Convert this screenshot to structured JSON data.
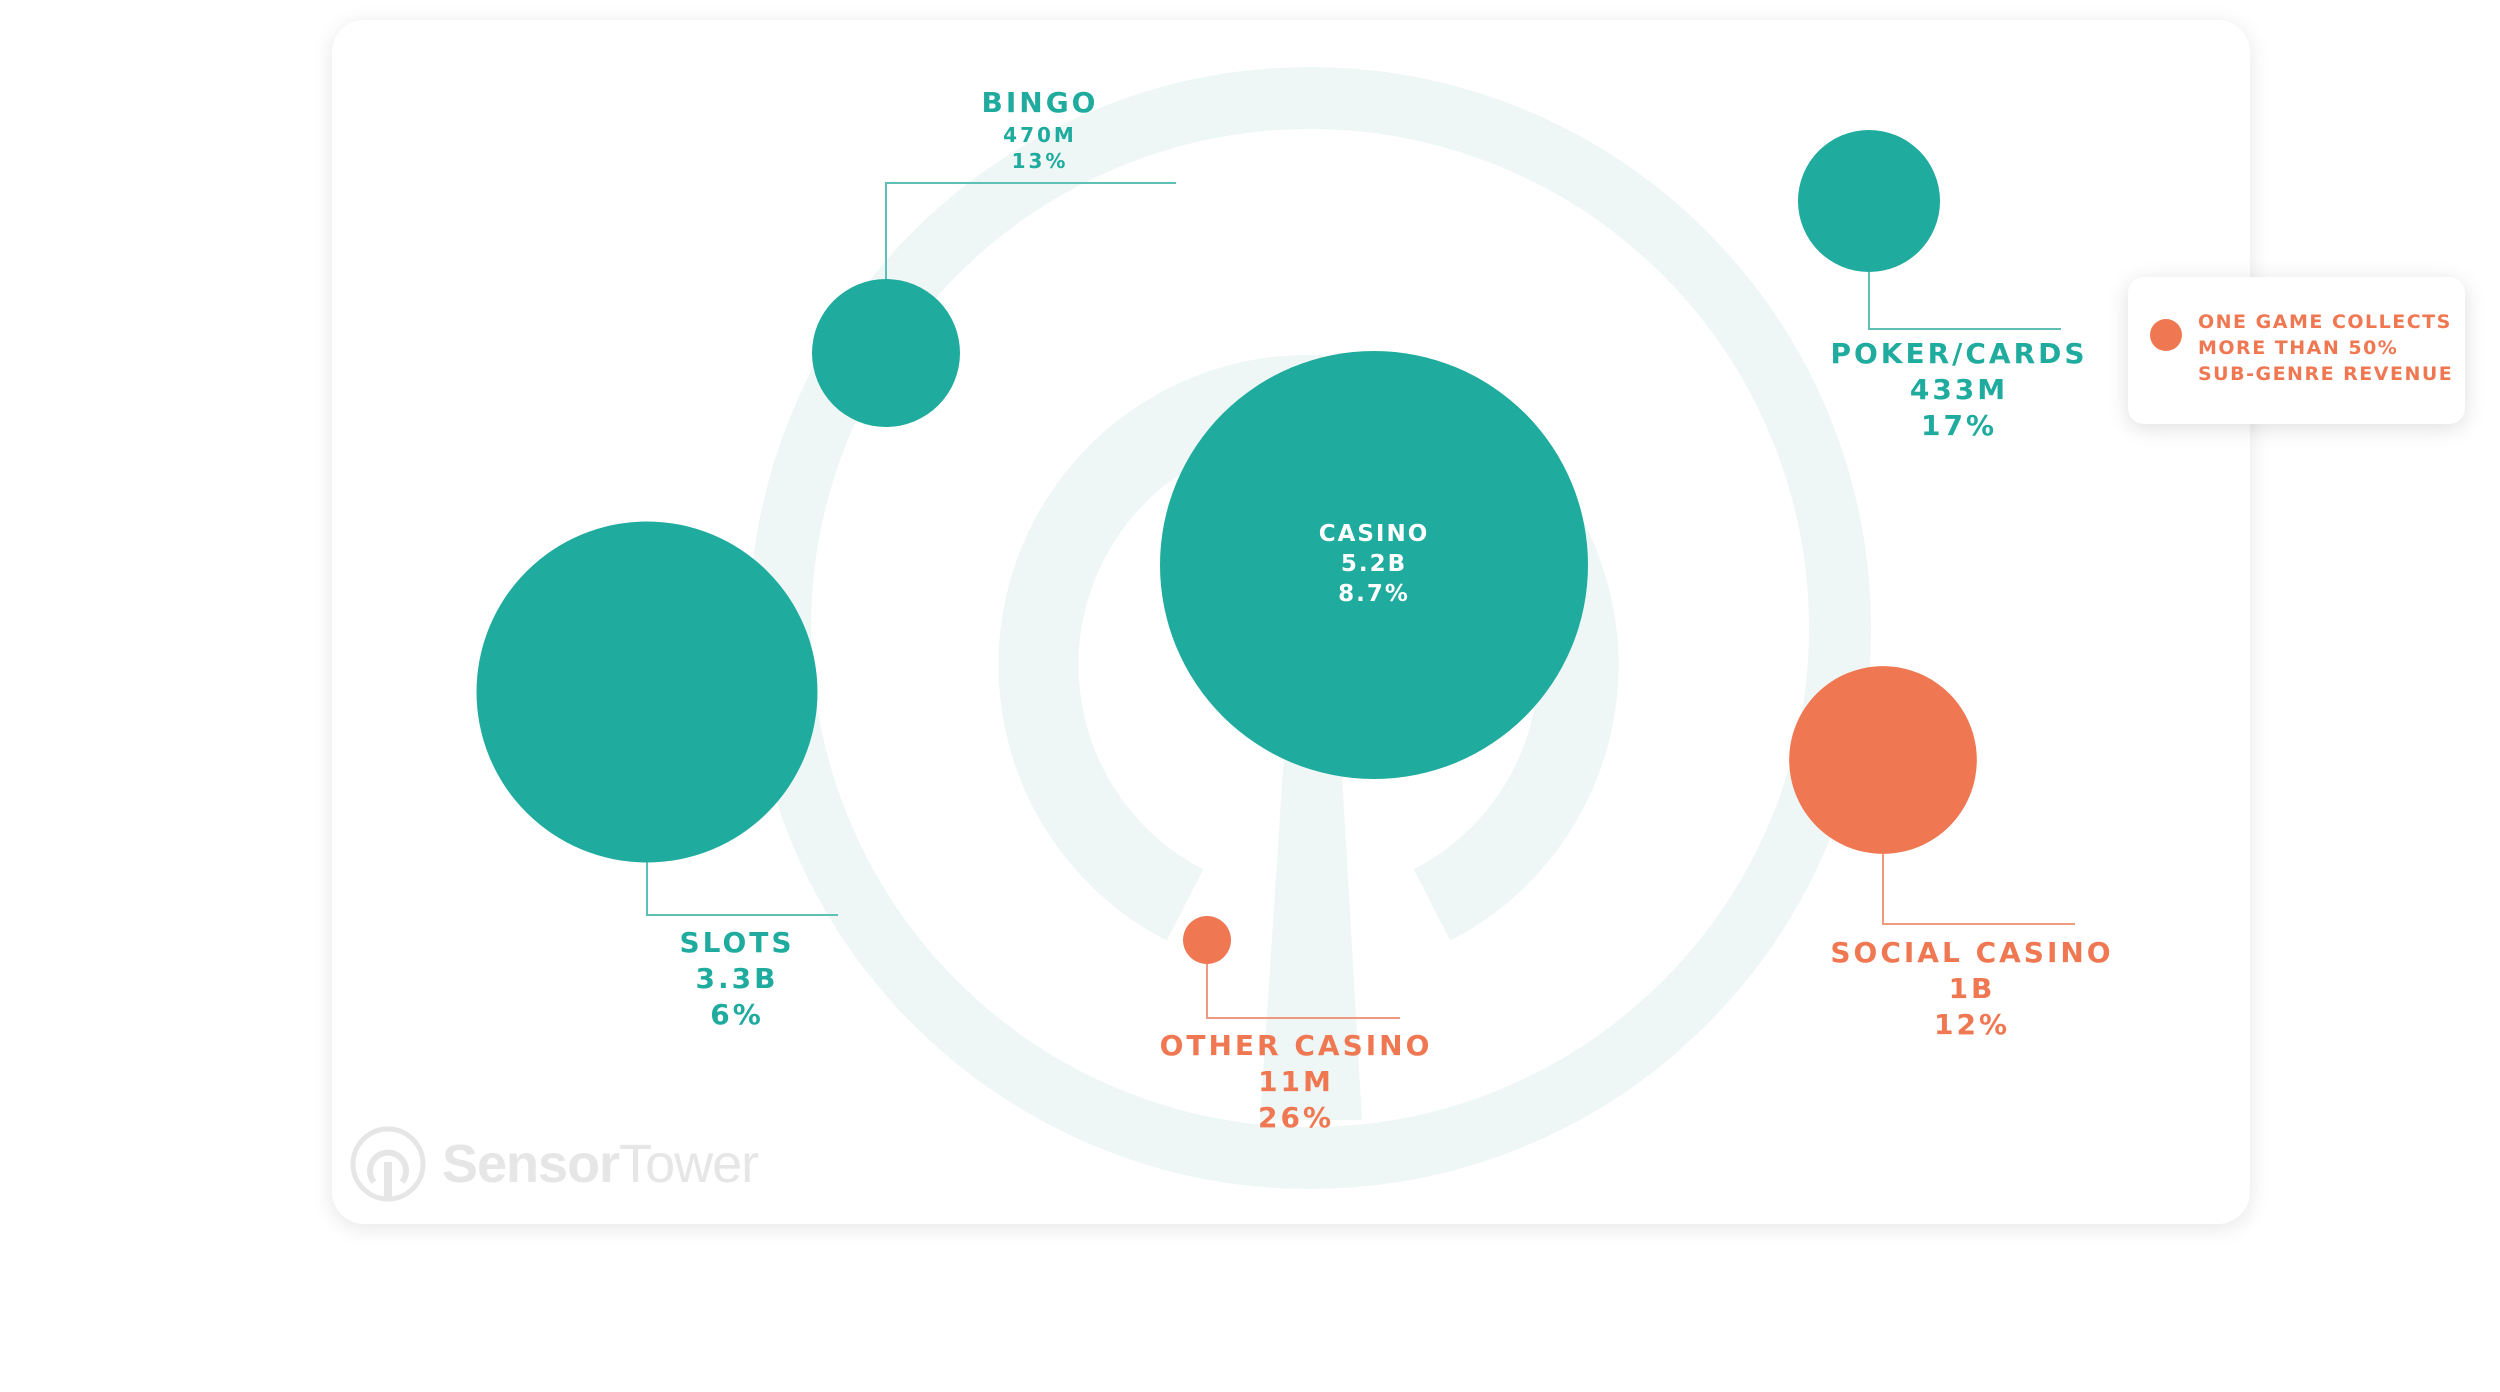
{
  "colors": {
    "teal": "#1fab9d",
    "orange": "#ef7852",
    "watermark_ring": "#eef7f5",
    "guide_teal": "#5fc1b6",
    "guide_orange": "#f09a7d"
  },
  "watermark": {
    "icon": "sensor-tower-logo-icon",
    "text_bold": "Sensor",
    "text_light": "Tower"
  },
  "legend": {
    "marker_color": "#ef7852",
    "text": "ONE GAME COLLECTS\nMORE THAN 50%\nSUB-GENRE REVENUE"
  },
  "chart_data": {
    "type": "bubble",
    "size_measure": "revenue",
    "series": [
      {
        "name": "CASINO",
        "revenue_label": "5.2B",
        "revenue_value": 5200000000,
        "share_label": "8.7%",
        "share": 8.7,
        "one_game_over_50pct": false
      },
      {
        "name": "SLOTS",
        "revenue_label": "3.3B",
        "revenue_value": 3300000000,
        "share_label": "6%",
        "share": 6,
        "one_game_over_50pct": false
      },
      {
        "name": "SOCIAL CASINO",
        "revenue_label": "1B",
        "revenue_value": 1000000000,
        "share_label": "12%",
        "share": 12,
        "one_game_over_50pct": true
      },
      {
        "name": "BINGO",
        "revenue_label": "470M",
        "revenue_value": 470000000,
        "share_label": "13%",
        "share": 13,
        "one_game_over_50pct": false
      },
      {
        "name": "POKER/CARDS",
        "revenue_label": "433M",
        "revenue_value": 433000000,
        "share_label": "17%",
        "share": 17,
        "one_game_over_50pct": false
      },
      {
        "name": "OTHER CASINO",
        "revenue_label": "11M",
        "revenue_value": 11000000,
        "share_label": "26%",
        "share": 26,
        "one_game_over_50pct": true
      }
    ],
    "legend_placement": "right"
  }
}
